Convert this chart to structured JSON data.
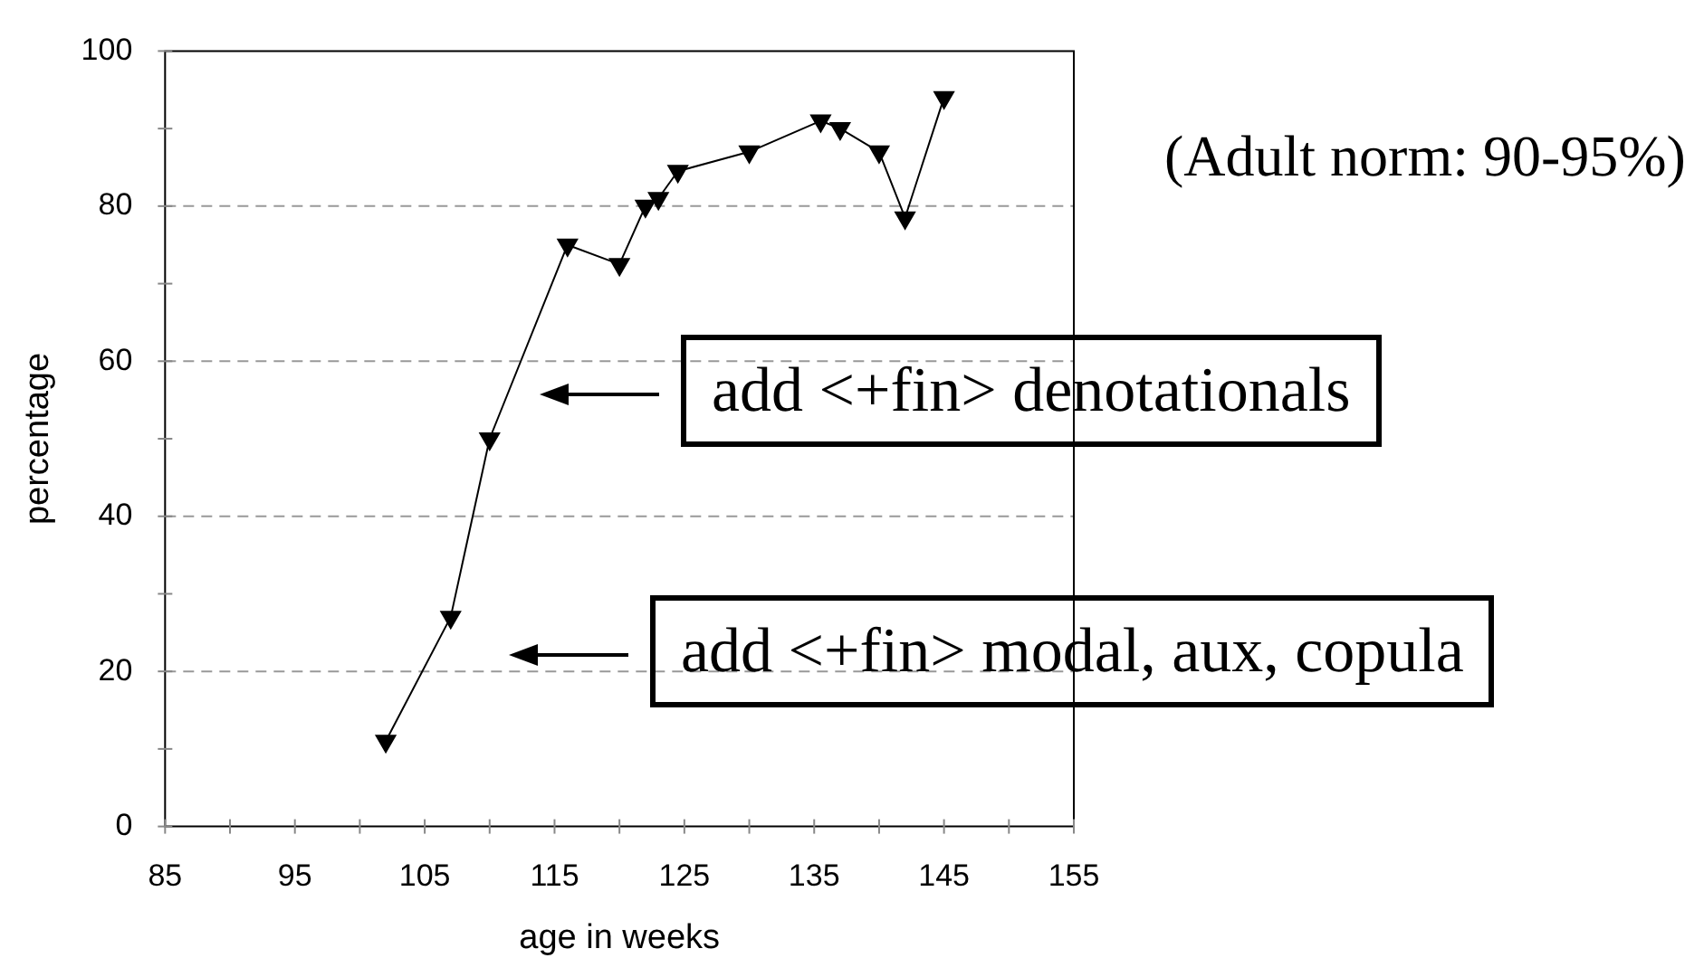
{
  "chart_data": {
    "type": "line",
    "xlabel": "age in weeks",
    "ylabel": "percentage",
    "x": [
      102,
      107,
      110,
      116,
      120,
      122,
      123,
      124.5,
      130,
      135.5,
      137,
      140,
      142,
      145
    ],
    "series": [
      {
        "color": "#000000",
        "values": [
          11,
          27,
          50,
          75,
          72.5,
          80,
          81,
          84.5,
          87,
          91,
          90,
          87,
          78.5,
          94
        ]
      }
    ],
    "marker": "triangle",
    "line_style": "solid",
    "grid": "y",
    "legend": false,
    "xlim": [
      85,
      155
    ],
    "ylim": [
      0,
      100
    ],
    "xticks": [
      85,
      {
        "value": 90,
        "label": null
      },
      95,
      {
        "value": 100,
        "label": null
      },
      105,
      {
        "value": 110,
        "label": null
      },
      115,
      {
        "value": 120,
        "label": null
      },
      125,
      {
        "value": 130,
        "label": null
      },
      135,
      {
        "value": 140,
        "label": null
      },
      145,
      {
        "value": 150,
        "label": null
      },
      155
    ],
    "yticks": [
      0,
      {
        "value": 10,
        "label": null
      },
      20,
      {
        "value": 30,
        "label": null
      },
      40,
      {
        "value": 50,
        "label": null
      },
      60,
      {
        "value": 70,
        "label": null
      },
      80,
      {
        "value": 90,
        "label": null
      },
      100
    ],
    "annotations": [
      "(Adult norm: 90-95%)",
      "add <+fin> denotationals",
      "add <+fin> modal, aux, copula"
    ]
  }
}
